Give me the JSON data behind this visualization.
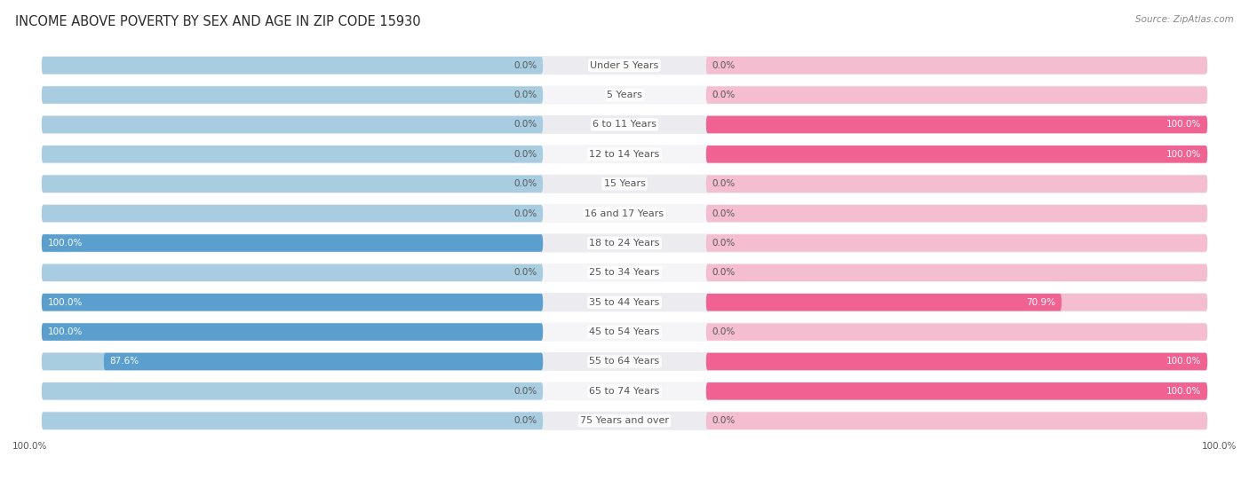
{
  "title": "INCOME ABOVE POVERTY BY SEX AND AGE IN ZIP CODE 15930",
  "source": "Source: ZipAtlas.com",
  "categories": [
    "Under 5 Years",
    "5 Years",
    "6 to 11 Years",
    "12 to 14 Years",
    "15 Years",
    "16 and 17 Years",
    "18 to 24 Years",
    "25 to 34 Years",
    "35 to 44 Years",
    "45 to 54 Years",
    "55 to 64 Years",
    "65 to 74 Years",
    "75 Years and over"
  ],
  "male": [
    0.0,
    0.0,
    0.0,
    0.0,
    0.0,
    0.0,
    100.0,
    0.0,
    100.0,
    100.0,
    87.6,
    0.0,
    0.0
  ],
  "female": [
    0.0,
    0.0,
    100.0,
    100.0,
    0.0,
    0.0,
    0.0,
    0.0,
    70.9,
    0.0,
    100.0,
    100.0,
    0.0
  ],
  "male_color_light": "#a8cce0",
  "male_color_dark": "#5b9fce",
  "female_color_light": "#f5bdd0",
  "female_color_full": "#f06292",
  "row_colors": [
    "#ebebf0",
    "#f5f5f8"
  ],
  "label_color": "#555555",
  "value_color_dark": "#555555",
  "value_color_white": "#ffffff",
  "max_val": 100.0,
  "title_fontsize": 10.5,
  "label_fontsize": 8,
  "tick_fontsize": 7.5,
  "source_fontsize": 7.5
}
